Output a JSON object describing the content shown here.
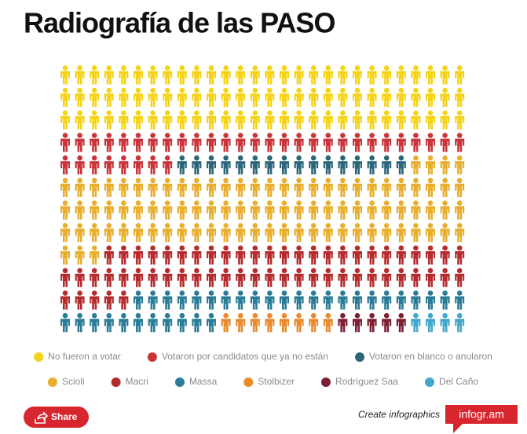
{
  "chart_data": {
    "type": "pictogram",
    "title": "Radiografía de las PASO",
    "series": [
      {
        "name": "No fueron a votar",
        "color": "#f5d316",
        "value": 84
      },
      {
        "name": "Votaron por candidatos que ya no están",
        "color": "#c9353b",
        "value": 36
      },
      {
        "name": "Votaron en blanco o anularon",
        "color": "#2b6679",
        "value": 16
      },
      {
        "name": "Scioli",
        "color": "#e8ae2e",
        "value": 91
      },
      {
        "name": "Macri",
        "color": "#b52b2e",
        "value": 58
      },
      {
        "name": "Massa",
        "color": "#2a7c97",
        "value": 34
      },
      {
        "name": "Stolbizer",
        "color": "#e98a2e",
        "value": 8
      },
      {
        "name": "Rodríguez Saa",
        "color": "#7e2034",
        "value": 5
      },
      {
        "name": "Del Caño",
        "color": "#42a8c9",
        "value": 4
      }
    ]
  },
  "footer": {
    "share": "Share",
    "cta": "Create infographics",
    "brand": "infogr.am"
  }
}
